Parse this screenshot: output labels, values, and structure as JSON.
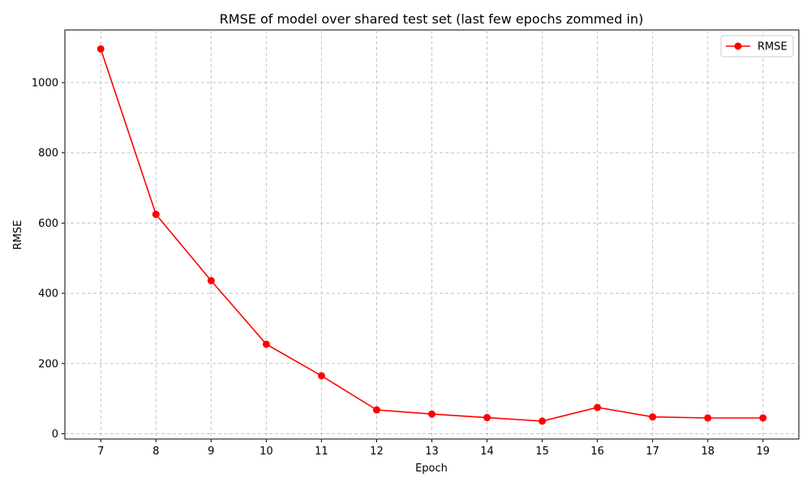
{
  "chart_data": {
    "type": "line",
    "title": "RMSE of model over shared test set (last few epochs zommed in)",
    "xlabel": "Epoch",
    "ylabel": "RMSE",
    "x": [
      7,
      8,
      9,
      10,
      11,
      12,
      13,
      14,
      15,
      16,
      17,
      18,
      19
    ],
    "series": [
      {
        "name": "RMSE",
        "color": "#ff0000",
        "marker": "circle",
        "values": [
          1096,
          625,
          436,
          255,
          165,
          68,
          56,
          46,
          36,
          75,
          48,
          45,
          45
        ]
      }
    ],
    "xticks": [
      "7",
      "8",
      "9",
      "10",
      "11",
      "12",
      "13",
      "14",
      "15",
      "16",
      "17",
      "18",
      "19"
    ],
    "yticks": [
      "0",
      "200",
      "400",
      "600",
      "800",
      "1000"
    ],
    "xlim": [
      6.35,
      19.65
    ],
    "ylim": [
      -15,
      1150
    ],
    "grid": true,
    "legend_position": "top-right"
  }
}
